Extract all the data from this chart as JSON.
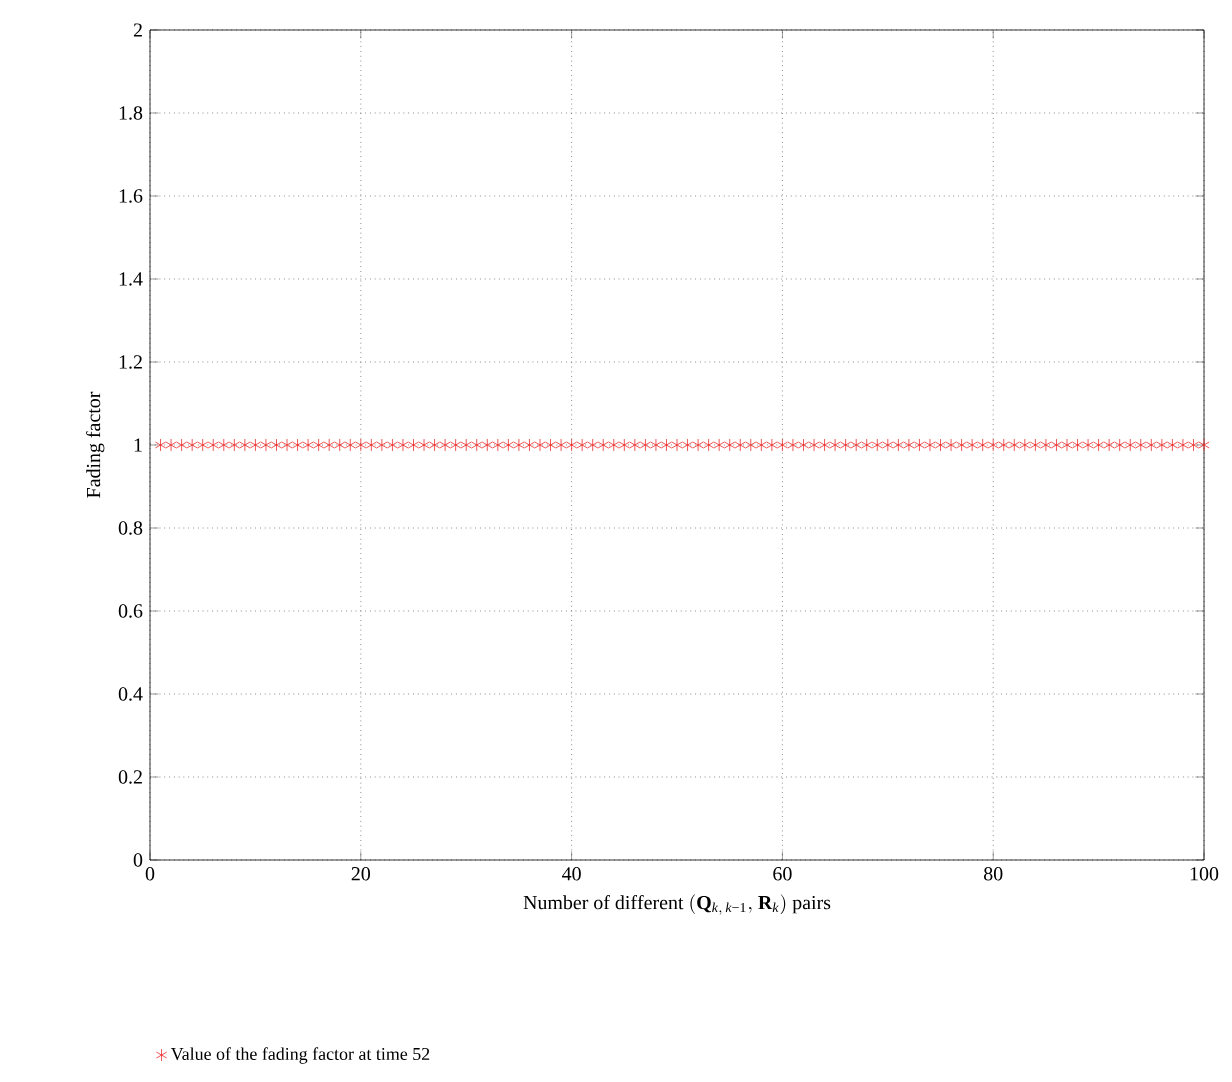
{
  "chart_data": {
    "type": "scatter",
    "xlabel": "\\mathrm{Number\\ of\\ different\\ (}\\mathbf{Q}_{\\mathit{k},\\,\\mathit{k}\\mathrm{−1}}\\mathrm{,\\ }\\mathbf{R}_{\\mathit{k}}\\mathrm{)\\ pairs}",
    "ylabel": "Fading factor",
    "xlim": [
      0,
      100
    ],
    "ylim": [
      0,
      2
    ],
    "xticks": [
      0,
      20,
      40,
      60,
      80,
      100
    ],
    "yticks": [
      0,
      0.2,
      0.4,
      0.6,
      0.8,
      1,
      1.2,
      1.4,
      1.6,
      1.8,
      2
    ],
    "grid": true,
    "legend": "bottom",
    "marker": "cross",
    "x": [
      1,
      2,
      3,
      4,
      5,
      6,
      7,
      8,
      9,
      10,
      11,
      12,
      13,
      14,
      15,
      16,
      17,
      18,
      19,
      20,
      21,
      22,
      23,
      24,
      25,
      26,
      27,
      28,
      29,
      30,
      31,
      32,
      33,
      34,
      35,
      36,
      37,
      38,
      39,
      40,
      41,
      42,
      43,
      44,
      45,
      46,
      47,
      48,
      49,
      50,
      51,
      52,
      53,
      54,
      55,
      56,
      57,
      58,
      59,
      60,
      61,
      62,
      63,
      64,
      65,
      66,
      67,
      68,
      69,
      70,
      71,
      72,
      73,
      74,
      75,
      76,
      77,
      78,
      79,
      80,
      81,
      82,
      83,
      84,
      85,
      86,
      87,
      88,
      89,
      90,
      91,
      92,
      93,
      94,
      95,
      96,
      97,
      98,
      99,
      100
    ],
    "series": [
      {
        "name": "Value of the fading factor at time 52",
        "color": "#ee2a2a",
        "values": [
          1,
          1,
          1,
          1,
          1,
          1,
          1,
          1,
          1,
          1,
          1,
          1,
          1,
          1,
          1,
          1,
          1,
          1,
          1,
          1,
          1,
          1,
          1,
          1,
          1,
          1,
          1,
          1,
          1,
          1,
          1,
          1,
          1,
          1,
          1,
          1,
          1,
          1,
          1,
          1,
          1,
          1,
          1,
          1,
          1,
          1,
          1,
          1,
          1,
          1,
          1,
          1,
          1,
          1,
          1,
          1,
          1,
          1,
          1,
          1,
          1,
          1,
          1,
          1,
          1,
          1,
          1,
          1,
          1,
          1,
          1,
          1,
          1,
          1,
          1,
          1,
          1,
          1,
          1,
          1,
          1,
          1,
          1,
          1,
          1,
          1,
          1,
          1,
          1,
          1,
          1,
          1,
          1,
          1,
          1,
          1,
          1,
          1,
          1,
          1
        ]
      }
    ]
  }
}
